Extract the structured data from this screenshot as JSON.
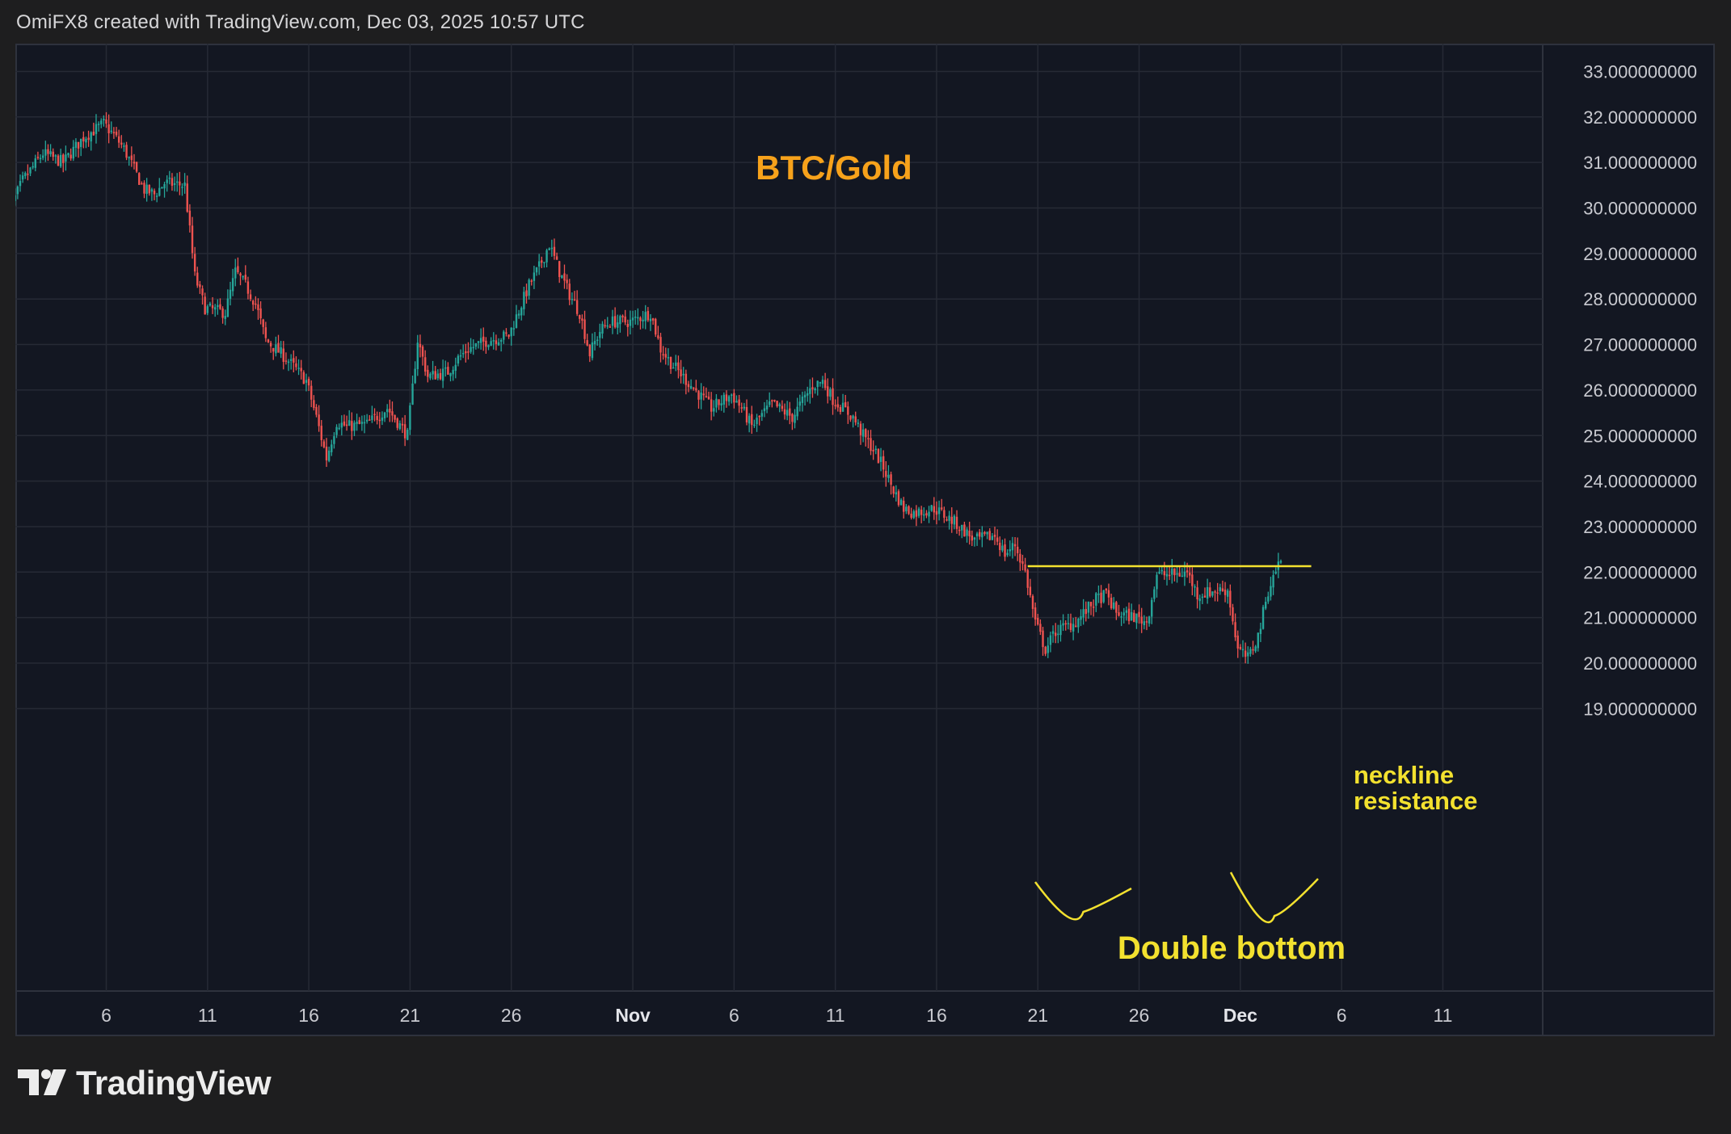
{
  "header": {
    "attribution": "OmiFX8 created with TradingView.com, Dec 03, 2025 10:57 UTC"
  },
  "logo": {
    "text": "TradingView",
    "icon": "tradingview-logo-icon"
  },
  "colors": {
    "background": "#1e1e1f",
    "plot_background": "#131722",
    "grid": "#262a35",
    "up_candle": "#26a69a",
    "down_candle": "#ef5350",
    "title": "#f7a21b",
    "annotation": "#f3e12f"
  },
  "chart_data": {
    "type": "candlestick",
    "title": "BTC/Gold",
    "grid": true,
    "y_axis": {
      "position": "right",
      "ticks": [
        {
          "value": 19,
          "label": "19.000000000"
        },
        {
          "value": 20,
          "label": "20.000000000"
        },
        {
          "value": 21,
          "label": "21.000000000"
        },
        {
          "value": 22,
          "label": "22.000000000"
        },
        {
          "value": 23,
          "label": "23.000000000"
        },
        {
          "value": 24,
          "label": "24.000000000"
        },
        {
          "value": 25,
          "label": "25.000000000"
        },
        {
          "value": 26,
          "label": "26.000000000"
        },
        {
          "value": 27,
          "label": "27.000000000"
        },
        {
          "value": 28,
          "label": "28.000000000"
        },
        {
          "value": 29,
          "label": "29.000000000"
        },
        {
          "value": 30,
          "label": "30.000000000"
        },
        {
          "value": 31,
          "label": "31.000000000"
        },
        {
          "value": 32,
          "label": "32.000000000"
        },
        {
          "value": 33,
          "label": "33.000000000"
        }
      ]
    },
    "x_axis": {
      "ticks": [
        {
          "date": "2025-10-06",
          "label": "6"
        },
        {
          "date": "2025-10-11",
          "label": "11"
        },
        {
          "date": "2025-10-16",
          "label": "16"
        },
        {
          "date": "2025-10-21",
          "label": "21"
        },
        {
          "date": "2025-10-26",
          "label": "26"
        },
        {
          "date": "2025-11-01",
          "label": "Nov",
          "bold": true
        },
        {
          "date": "2025-11-06",
          "label": "6"
        },
        {
          "date": "2025-11-11",
          "label": "11"
        },
        {
          "date": "2025-11-16",
          "label": "16"
        },
        {
          "date": "2025-11-21",
          "label": "21"
        },
        {
          "date": "2025-11-26",
          "label": "26"
        },
        {
          "date": "2025-12-01",
          "label": "Dec",
          "bold": true
        },
        {
          "date": "2025-12-06",
          "label": "6"
        },
        {
          "date": "2025-12-11",
          "label": "11"
        }
      ]
    },
    "price_path": [
      {
        "date": "2025-10-01",
        "value": 29.6
      },
      {
        "date": "2025-10-02",
        "value": 30.6
      },
      {
        "date": "2025-10-03",
        "value": 31.2
      },
      {
        "date": "2025-10-04",
        "value": 31.0
      },
      {
        "date": "2025-10-05",
        "value": 31.55
      },
      {
        "date": "2025-10-06",
        "value": 31.85
      },
      {
        "date": "2025-10-06.5",
        "value": 31.6
      },
      {
        "date": "2025-10-07",
        "value": 31.3
      },
      {
        "date": "2025-10-08",
        "value": 30.4
      },
      {
        "date": "2025-10-08.5",
        "value": 30.3
      },
      {
        "date": "2025-10-09",
        "value": 30.55
      },
      {
        "date": "2025-10-10",
        "value": 30.5
      },
      {
        "date": "2025-10-10.5",
        "value": 28.5
      },
      {
        "date": "2025-10-11",
        "value": 27.8
      },
      {
        "date": "2025-10-12",
        "value": 27.7
      },
      {
        "date": "2025-10-12.5",
        "value": 28.6
      },
      {
        "date": "2025-10-13",
        "value": 28.3
      },
      {
        "date": "2025-10-13.5",
        "value": 27.9
      },
      {
        "date": "2025-10-14",
        "value": 27.1
      },
      {
        "date": "2025-10-15",
        "value": 26.7
      },
      {
        "date": "2025-10-16",
        "value": 26.2
      },
      {
        "date": "2025-10-16.5",
        "value": 25.4
      },
      {
        "date": "2025-10-17",
        "value": 24.5
      },
      {
        "date": "2025-10-17.5",
        "value": 25.3
      },
      {
        "date": "2025-10-18",
        "value": 25.2
      },
      {
        "date": "2025-10-19",
        "value": 25.25
      },
      {
        "date": "2025-10-20",
        "value": 25.6
      },
      {
        "date": "2025-10-20.5",
        "value": 25.3
      },
      {
        "date": "2025-10-21",
        "value": 25.0
      },
      {
        "date": "2025-10-21.5",
        "value": 27.1
      },
      {
        "date": "2025-10-22",
        "value": 26.3
      },
      {
        "date": "2025-10-23",
        "value": 26.4
      },
      {
        "date": "2025-10-23.5",
        "value": 26.7
      },
      {
        "date": "2025-10-24",
        "value": 26.9
      },
      {
        "date": "2025-10-25",
        "value": 27.1
      },
      {
        "date": "2025-10-26",
        "value": 27.2
      },
      {
        "date": "2025-10-27",
        "value": 28.3
      },
      {
        "date": "2025-10-27.5",
        "value": 28.7
      },
      {
        "date": "2025-10-28",
        "value": 29.2
      },
      {
        "date": "2025-10-28.5",
        "value": 28.6
      },
      {
        "date": "2025-10-29",
        "value": 28.1
      },
      {
        "date": "2025-10-29.5",
        "value": 27.7
      },
      {
        "date": "2025-10-30",
        "value": 26.8
      },
      {
        "date": "2025-10-30.5",
        "value": 27.3
      },
      {
        "date": "2025-10-31",
        "value": 27.5
      },
      {
        "date": "2025-11-01",
        "value": 27.5
      },
      {
        "date": "2025-11-02",
        "value": 27.7
      },
      {
        "date": "2025-11-02.5",
        "value": 26.9
      },
      {
        "date": "2025-11-03",
        "value": 26.6
      },
      {
        "date": "2025-11-04",
        "value": 26.1
      },
      {
        "date": "2025-11-05",
        "value": 25.6
      },
      {
        "date": "2025-11-06",
        "value": 25.9
      },
      {
        "date": "2025-11-06.5",
        "value": 25.6
      },
      {
        "date": "2025-11-07",
        "value": 25.2
      },
      {
        "date": "2025-11-08",
        "value": 25.7
      },
      {
        "date": "2025-11-09",
        "value": 25.4
      },
      {
        "date": "2025-11-10",
        "value": 26.1
      },
      {
        "date": "2025-11-10.5",
        "value": 26.2
      },
      {
        "date": "2025-11-11",
        "value": 25.8
      },
      {
        "date": "2025-11-12",
        "value": 25.4
      },
      {
        "date": "2025-11-12.5",
        "value": 25.0
      },
      {
        "date": "2025-11-13",
        "value": 24.7
      },
      {
        "date": "2025-11-13.5",
        "value": 24.3
      },
      {
        "date": "2025-11-14",
        "value": 23.8
      },
      {
        "date": "2025-11-14.5",
        "value": 23.4
      },
      {
        "date": "2025-11-15",
        "value": 23.3
      },
      {
        "date": "2025-11-16",
        "value": 23.4
      },
      {
        "date": "2025-11-17",
        "value": 23.1
      },
      {
        "date": "2025-11-18",
        "value": 22.7
      },
      {
        "date": "2025-11-19",
        "value": 22.8
      },
      {
        "date": "2025-11-19.5",
        "value": 22.4
      },
      {
        "date": "2025-11-20",
        "value": 22.6
      },
      {
        "date": "2025-11-20.5",
        "value": 22.0
      },
      {
        "date": "2025-11-21",
        "value": 20.9
      },
      {
        "date": "2025-11-21.5",
        "value": 20.3
      },
      {
        "date": "2025-11-22",
        "value": 20.7
      },
      {
        "date": "2025-11-23",
        "value": 20.9
      },
      {
        "date": "2025-11-24",
        "value": 21.4
      },
      {
        "date": "2025-11-24.5",
        "value": 21.5
      },
      {
        "date": "2025-11-25",
        "value": 21.1
      },
      {
        "date": "2025-11-26",
        "value": 21.0
      },
      {
        "date": "2025-11-26.5",
        "value": 20.9
      },
      {
        "date": "2025-11-27",
        "value": 21.95
      },
      {
        "date": "2025-11-28",
        "value": 21.95
      },
      {
        "date": "2025-11-28.5",
        "value": 22.0
      },
      {
        "date": "2025-11-29",
        "value": 21.5
      },
      {
        "date": "2025-11-30",
        "value": 21.6
      },
      {
        "date": "2025-11-30.5",
        "value": 21.6
      },
      {
        "date": "2025-12-01",
        "value": 20.3
      },
      {
        "date": "2025-12-01.5",
        "value": 20.1
      },
      {
        "date": "2025-12-02",
        "value": 20.6
      },
      {
        "date": "2025-12-02.5",
        "value": 21.6
      },
      {
        "date": "2025-12-03",
        "value": 22.2
      }
    ],
    "annotations": {
      "neckline": {
        "value": 22.13,
        "from": "2025-11-20.5",
        "to": "2025-12-04.5"
      },
      "neckline_label": [
        "neckline",
        "resistance"
      ],
      "pattern_label": "Double bottom"
    }
  }
}
